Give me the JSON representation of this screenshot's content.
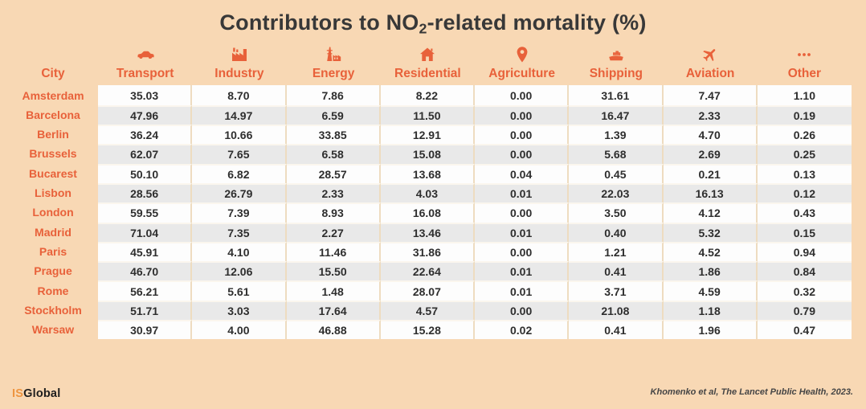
{
  "title": {
    "prefix": "Contributors to NO",
    "subscript": "2",
    "suffix": "-related mortality (%)"
  },
  "accent_color": "#e8613a",
  "background_color": "#f8d8b4",
  "table": {
    "city_header": "City",
    "columns": [
      {
        "label": "Transport",
        "icon": "car-icon"
      },
      {
        "label": "Industry",
        "icon": "factory-icon"
      },
      {
        "label": "Energy",
        "icon": "power-plant-icon"
      },
      {
        "label": "Residential",
        "icon": "house-icon"
      },
      {
        "label": "Agriculture",
        "icon": "map-pin-icon"
      },
      {
        "label": "Shipping",
        "icon": "ship-icon"
      },
      {
        "label": "Aviation",
        "icon": "plane-icon"
      },
      {
        "label": "Other",
        "icon": "ellipsis-icon"
      }
    ],
    "rows": [
      {
        "city": "Amsterdam",
        "values": [
          "35.03",
          "8.70",
          "7.86",
          "8.22",
          "0.00",
          "31.61",
          "7.47",
          "1.10"
        ]
      },
      {
        "city": "Barcelona",
        "values": [
          "47.96",
          "14.97",
          "6.59",
          "11.50",
          "0.00",
          "16.47",
          "2.33",
          "0.19"
        ]
      },
      {
        "city": "Berlin",
        "values": [
          "36.24",
          "10.66",
          "33.85",
          "12.91",
          "0.00",
          "1.39",
          "4.70",
          "0.26"
        ]
      },
      {
        "city": "Brussels",
        "values": [
          "62.07",
          "7.65",
          "6.58",
          "15.08",
          "0.00",
          "5.68",
          "2.69",
          "0.25"
        ]
      },
      {
        "city": "Bucarest",
        "values": [
          "50.10",
          "6.82",
          "28.57",
          "13.68",
          "0.04",
          "0.45",
          "0.21",
          "0.13"
        ]
      },
      {
        "city": "Lisbon",
        "values": [
          "28.56",
          "26.79",
          "2.33",
          "4.03",
          "0.01",
          "22.03",
          "16.13",
          "0.12"
        ]
      },
      {
        "city": "London",
        "values": [
          "59.55",
          "7.39",
          "8.93",
          "16.08",
          "0.00",
          "3.50",
          "4.12",
          "0.43"
        ]
      },
      {
        "city": "Madrid",
        "values": [
          "71.04",
          "7.35",
          "2.27",
          "13.46",
          "0.01",
          "0.40",
          "5.32",
          "0.15"
        ]
      },
      {
        "city": "Paris",
        "values": [
          "45.91",
          "4.10",
          "11.46",
          "31.86",
          "0.00",
          "1.21",
          "4.52",
          "0.94"
        ]
      },
      {
        "city": "Prague",
        "values": [
          "46.70",
          "12.06",
          "15.50",
          "22.64",
          "0.01",
          "0.41",
          "1.86",
          "0.84"
        ]
      },
      {
        "city": "Rome",
        "values": [
          "56.21",
          "5.61",
          "1.48",
          "28.07",
          "0.01",
          "3.71",
          "4.59",
          "0.32"
        ]
      },
      {
        "city": "Stockholm",
        "values": [
          "51.71",
          "3.03",
          "17.64",
          "4.57",
          "0.00",
          "21.08",
          "1.18",
          "0.79"
        ]
      },
      {
        "city": "Warsaw",
        "values": [
          "30.97",
          "4.00",
          "46.88",
          "15.28",
          "0.02",
          "0.41",
          "1.96",
          "0.47"
        ]
      }
    ]
  },
  "footer": {
    "logo_prefix": "IS",
    "logo_suffix": "Global",
    "source": "Khomenko et al, The Lancet Public Health, 2023."
  },
  "chart_data": {
    "type": "table",
    "title": "Contributors to NO2-related mortality (%)",
    "columns": [
      "City",
      "Transport",
      "Industry",
      "Energy",
      "Residential",
      "Agriculture",
      "Shipping",
      "Aviation",
      "Other"
    ],
    "rows": [
      [
        "Amsterdam",
        35.03,
        8.7,
        7.86,
        8.22,
        0.0,
        31.61,
        7.47,
        1.1
      ],
      [
        "Barcelona",
        47.96,
        14.97,
        6.59,
        11.5,
        0.0,
        16.47,
        2.33,
        0.19
      ],
      [
        "Berlin",
        36.24,
        10.66,
        33.85,
        12.91,
        0.0,
        1.39,
        4.7,
        0.26
      ],
      [
        "Brussels",
        62.07,
        7.65,
        6.58,
        15.08,
        0.0,
        5.68,
        2.69,
        0.25
      ],
      [
        "Bucarest",
        50.1,
        6.82,
        28.57,
        13.68,
        0.04,
        0.45,
        0.21,
        0.13
      ],
      [
        "Lisbon",
        28.56,
        26.79,
        2.33,
        4.03,
        0.01,
        22.03,
        16.13,
        0.12
      ],
      [
        "London",
        59.55,
        7.39,
        8.93,
        16.08,
        0.0,
        3.5,
        4.12,
        0.43
      ],
      [
        "Madrid",
        71.04,
        7.35,
        2.27,
        13.46,
        0.01,
        0.4,
        5.32,
        0.15
      ],
      [
        "Paris",
        45.91,
        4.1,
        11.46,
        31.86,
        0.0,
        1.21,
        4.52,
        0.94
      ],
      [
        "Prague",
        46.7,
        12.06,
        15.5,
        22.64,
        0.01,
        0.41,
        1.86,
        0.84
      ],
      [
        "Rome",
        56.21,
        5.61,
        1.48,
        28.07,
        0.01,
        3.71,
        4.59,
        0.32
      ],
      [
        "Stockholm",
        51.71,
        3.03,
        17.64,
        4.57,
        0.0,
        21.08,
        1.18,
        0.79
      ],
      [
        "Warsaw",
        30.97,
        4.0,
        46.88,
        15.28,
        0.02,
        0.41,
        1.96,
        0.47
      ]
    ],
    "source": "Khomenko et al, The Lancet Public Health, 2023.",
    "notes": "Row stripes alternate white/gray; city names and headers in orange accent."
  }
}
